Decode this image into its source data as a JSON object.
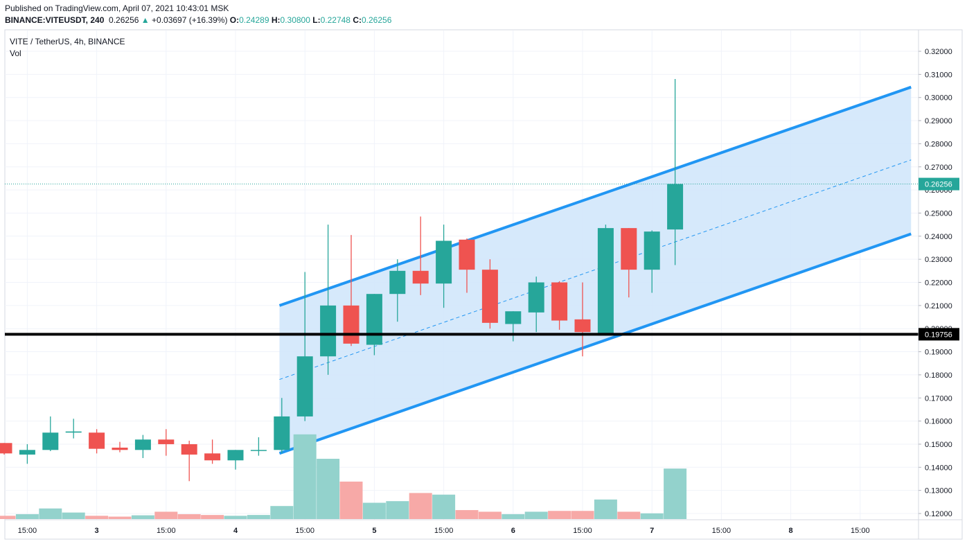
{
  "header": {
    "published": "Published on TradingView.com, April 07, 2021 10:43:01 MSK",
    "symbol": "BINANCE:VITEUSDT, 240",
    "last": "0.26256",
    "change": "+0.03697 (+16.39%)",
    "o_label": "O:",
    "o_value": "0.24289",
    "h_label": "H:",
    "h_value": "0.30800",
    "l_label": "L:",
    "l_value": "0.22748",
    "c_label": "C:",
    "c_value": "0.26256"
  },
  "legend": {
    "title": "VITE / TetherUS, 4h, BINANCE",
    "vol": "Vol"
  },
  "colors": {
    "up": "#26a69a",
    "down": "#ef5350",
    "vol_up": "#93d2cc",
    "vol_down": "#f7a9a7",
    "channel": "#2196f3",
    "channel_fill": "#d2e7fb",
    "support": "#000000"
  },
  "chart_data": {
    "type": "candlestick",
    "ylim": [
      0.115,
      0.325
    ],
    "y_ticks": [
      "0.32000",
      "0.31000",
      "0.30000",
      "0.29000",
      "0.28000",
      "0.27000",
      "0.26000",
      "0.25000",
      "0.24000",
      "0.23000",
      "0.22000",
      "0.21000",
      "0.20000",
      "0.19000",
      "0.18000",
      "0.17000",
      "0.16000",
      "0.15000",
      "0.14000",
      "0.13000",
      "0.12000"
    ],
    "x_ticks": [
      {
        "label": "15:00",
        "index": 1
      },
      {
        "label": "3",
        "index": 4
      },
      {
        "label": "15:00",
        "index": 7
      },
      {
        "label": "4",
        "index": 10
      },
      {
        "label": "15:00",
        "index": 13
      },
      {
        "label": "5",
        "index": 16
      },
      {
        "label": "15:00",
        "index": 19
      },
      {
        "label": "6",
        "index": 22
      },
      {
        "label": "15:00",
        "index": 25
      },
      {
        "label": "7",
        "index": 28
      },
      {
        "label": "15:00",
        "index": 31
      },
      {
        "label": "8",
        "index": 34
      },
      {
        "label": "15:00",
        "index": 37
      }
    ],
    "candles": [
      {
        "o": 0.1505,
        "h": 0.1505,
        "l": 0.1455,
        "c": 0.146,
        "v": 0.002
      },
      {
        "o": 0.1455,
        "h": 0.15,
        "l": 0.1415,
        "c": 0.1475,
        "v": 0.003
      },
      {
        "o": 0.1475,
        "h": 0.162,
        "l": 0.147,
        "c": 0.155,
        "v": 0.0065
      },
      {
        "o": 0.155,
        "h": 0.161,
        "l": 0.1525,
        "c": 0.1555,
        "v": 0.004
      },
      {
        "o": 0.155,
        "h": 0.1565,
        "l": 0.146,
        "c": 0.148,
        "v": 0.002
      },
      {
        "o": 0.1485,
        "h": 0.151,
        "l": 0.1465,
        "c": 0.1475,
        "v": 0.0015
      },
      {
        "o": 0.1475,
        "h": 0.154,
        "l": 0.144,
        "c": 0.152,
        "v": 0.0023
      },
      {
        "o": 0.152,
        "h": 0.1565,
        "l": 0.145,
        "c": 0.15,
        "v": 0.0045
      },
      {
        "o": 0.15,
        "h": 0.1515,
        "l": 0.134,
        "c": 0.1455,
        "v": 0.003
      },
      {
        "o": 0.146,
        "h": 0.152,
        "l": 0.1415,
        "c": 0.143,
        "v": 0.0025
      },
      {
        "o": 0.143,
        "h": 0.1475,
        "l": 0.139,
        "c": 0.1475,
        "v": 0.002
      },
      {
        "o": 0.1475,
        "h": 0.153,
        "l": 0.145,
        "c": 0.1475,
        "v": 0.0025
      },
      {
        "o": 0.1475,
        "h": 0.17,
        "l": 0.146,
        "c": 0.162,
        "v": 0.008
      },
      {
        "o": 0.162,
        "h": 0.2245,
        "l": 0.16,
        "c": 0.188,
        "v": 0.052
      },
      {
        "o": 0.188,
        "h": 0.245,
        "l": 0.18,
        "c": 0.21,
        "v": 0.037
      },
      {
        "o": 0.21,
        "h": 0.2405,
        "l": 0.1925,
        "c": 0.1935,
        "v": 0.023
      },
      {
        "o": 0.193,
        "h": 0.215,
        "l": 0.1885,
        "c": 0.215,
        "v": 0.01
      },
      {
        "o": 0.215,
        "h": 0.23,
        "l": 0.203,
        "c": 0.225,
        "v": 0.011
      },
      {
        "o": 0.225,
        "h": 0.2485,
        "l": 0.2145,
        "c": 0.2195,
        "v": 0.016
      },
      {
        "o": 0.2195,
        "h": 0.245,
        "l": 0.209,
        "c": 0.238,
        "v": 0.015
      },
      {
        "o": 0.2385,
        "h": 0.239,
        "l": 0.2155,
        "c": 0.2255,
        "v": 0.0055
      },
      {
        "o": 0.2255,
        "h": 0.23,
        "l": 0.2,
        "c": 0.2025,
        "v": 0.0045
      },
      {
        "o": 0.202,
        "h": 0.2075,
        "l": 0.1945,
        "c": 0.2075,
        "v": 0.003
      },
      {
        "o": 0.207,
        "h": 0.2225,
        "l": 0.1985,
        "c": 0.22,
        "v": 0.0045
      },
      {
        "o": 0.22,
        "h": 0.2205,
        "l": 0.1995,
        "c": 0.2035,
        "v": 0.005
      },
      {
        "o": 0.204,
        "h": 0.22,
        "l": 0.188,
        "c": 0.1985,
        "v": 0.005
      },
      {
        "o": 0.197,
        "h": 0.245,
        "l": 0.197,
        "c": 0.2435,
        "v": 0.012
      },
      {
        "o": 0.2435,
        "h": 0.2435,
        "l": 0.2135,
        "c": 0.2255,
        "v": 0.0045
      },
      {
        "o": 0.2255,
        "h": 0.2425,
        "l": 0.2155,
        "c": 0.242,
        "v": 0.0035
      },
      {
        "o": 0.2429,
        "h": 0.308,
        "l": 0.2275,
        "c": 0.2626,
        "v": 0.031
      }
    ],
    "volume_scale": "overlay, no axis",
    "last_price": {
      "value": 0.26256,
      "label": "0.26256"
    },
    "support_line": {
      "value": 0.19756,
      "label": "0.19756"
    },
    "channel": {
      "start_index": 11.9,
      "end_index": 39.2,
      "upper": [
        0.21,
        0.3045
      ],
      "lower": [
        0.146,
        0.241
      ],
      "mid": [
        0.178,
        0.273
      ]
    },
    "grid": true
  }
}
